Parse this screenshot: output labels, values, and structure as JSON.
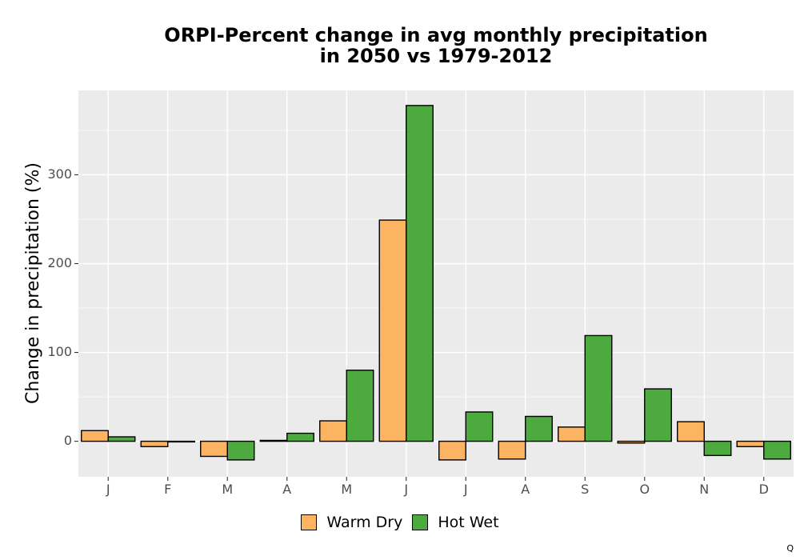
{
  "chart_data": {
    "type": "bar",
    "title": [
      "ORPI-Percent change in avg monthly precipitation",
      "in 2050 vs 1979-2012"
    ],
    "xlabel": "",
    "ylabel": "Change in precipitation (%)",
    "categories": [
      "J",
      "F",
      "M",
      "A",
      "M",
      "J",
      "J",
      "A",
      "S",
      "O",
      "N",
      "D"
    ],
    "series": [
      {
        "name": "Warm Dry",
        "color": "#fdb462",
        "values": [
          12,
          -6,
          -17,
          1,
          23,
          249,
          -21,
          -20,
          16,
          -2,
          22,
          -6
        ]
      },
      {
        "name": "Hot Wet",
        "color": "#4daa3e",
        "values": [
          5,
          0,
          -21,
          9,
          80,
          378,
          33,
          28,
          119,
          59,
          -16,
          -20
        ]
      }
    ],
    "ylim": [
      -40,
      395
    ],
    "yticks": [
      0,
      100,
      200,
      300
    ],
    "grid": true,
    "legend_position": "bottom"
  },
  "corner_mark": "Q"
}
